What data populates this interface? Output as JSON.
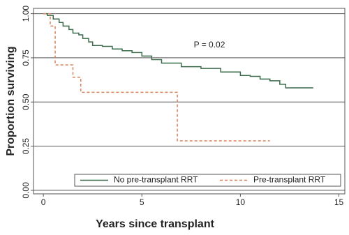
{
  "chart_data": {
    "type": "step",
    "annotation": "P = 0.02",
    "x_label": "Years since transplant",
    "y_label": "Proportion surviving",
    "xlim": [
      -0.5,
      15.3
    ],
    "ylim": [
      -0.02,
      1.03
    ],
    "xticks": [
      0,
      5,
      10,
      15
    ],
    "yticks": [
      {
        "value": 0,
        "label": "0.00"
      },
      {
        "value": 0.25,
        "label": "0.25"
      },
      {
        "value": 0.5,
        "label": "0.50"
      },
      {
        "value": 0.75,
        "label": "0.75"
      },
      {
        "value": 1,
        "label": "1.00"
      }
    ],
    "grid": true,
    "legend": "bottom",
    "series": [
      {
        "name": "No pre-transplant RRT",
        "color": "#3a6b4a",
        "dash": false,
        "x": [
          0,
          0.2,
          0.5,
          0.8,
          1,
          1.3,
          1.5,
          1.8,
          2,
          2.3,
          2.5,
          3,
          3.5,
          4,
          4.5,
          5,
          5.5,
          6,
          7,
          8,
          9,
          10,
          10.5,
          11,
          11.5,
          12,
          12.3,
          13.7
        ],
        "values": [
          1,
          0.99,
          0.97,
          0.95,
          0.93,
          0.91,
          0.89,
          0.88,
          0.86,
          0.84,
          0.82,
          0.815,
          0.8,
          0.79,
          0.78,
          0.76,
          0.74,
          0.72,
          0.7,
          0.69,
          0.67,
          0.65,
          0.645,
          0.63,
          0.62,
          0.6,
          0.58,
          0.58
        ]
      },
      {
        "name": "Pre-transplant RRT",
        "color": "#d9825a",
        "dash": true,
        "x": [
          0,
          0.35,
          0.6,
          1.5,
          1.9,
          6.8,
          11.5
        ],
        "values": [
          1,
          0.93,
          0.71,
          0.64,
          0.555,
          0.28,
          0.28
        ]
      }
    ]
  }
}
